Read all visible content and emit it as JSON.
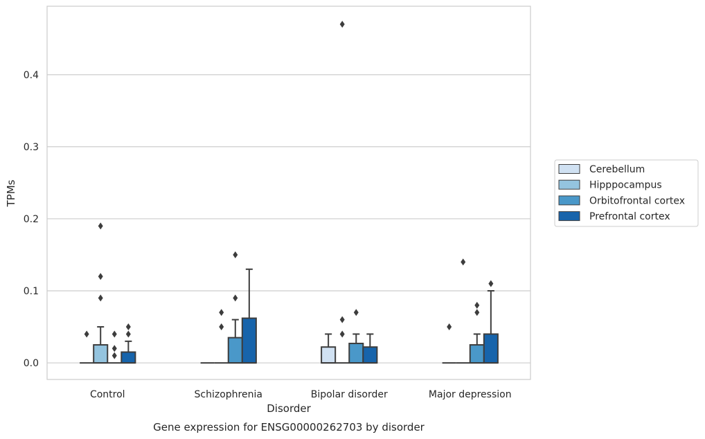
{
  "chart_data": {
    "type": "box",
    "title": "",
    "caption": "Gene expression for ENSG00000262703 by disorder",
    "xlabel": "Disorder",
    "ylabel": "TPMs",
    "ylim": [
      -0.023,
      0.495
    ],
    "yticks": [
      0.0,
      0.1,
      0.2,
      0.3,
      0.4
    ],
    "ytick_labels": [
      "0.0",
      "0.1",
      "0.2",
      "0.3",
      "0.4"
    ],
    "grid": "horizontal",
    "legend_placement": "right",
    "categories": [
      "Control",
      "Schizophrenia",
      "Bipolar disorder",
      "Major depression"
    ],
    "series": [
      {
        "name": "Cerebellum",
        "color": "#d0e1f2",
        "boxes": [
          {
            "q1": 0,
            "median": 0,
            "q3": 0,
            "whisker_low": 0,
            "whisker_high": 0,
            "outliers": [
              0.04
            ]
          },
          {
            "q1": 0,
            "median": 0,
            "q3": 0,
            "whisker_low": 0,
            "whisker_high": 0,
            "outliers": []
          },
          {
            "q1": 0,
            "median": 0,
            "q3": 0.022,
            "whisker_low": 0,
            "whisker_high": 0.04,
            "outliers": []
          },
          {
            "q1": 0,
            "median": 0,
            "q3": 0,
            "whisker_low": 0,
            "whisker_high": 0,
            "outliers": [
              0.05
            ]
          }
        ]
      },
      {
        "name": "Hipppocampus",
        "color": "#94c4df",
        "boxes": [
          {
            "q1": 0,
            "median": 0,
            "q3": 0.025,
            "whisker_low": 0,
            "whisker_high": 0.05,
            "outliers": [
              0.09,
              0.12,
              0.19
            ]
          },
          {
            "q1": 0,
            "median": 0,
            "q3": 0,
            "whisker_low": 0,
            "whisker_high": 0,
            "outliers": [
              0.05,
              0.07
            ]
          },
          {
            "q1": 0,
            "median": 0,
            "q3": 0,
            "whisker_low": 0,
            "whisker_high": 0,
            "outliers": [
              0.04,
              0.06,
              0.47
            ]
          },
          {
            "q1": 0,
            "median": 0,
            "q3": 0,
            "whisker_low": 0,
            "whisker_high": 0,
            "outliers": [
              0.14
            ]
          }
        ]
      },
      {
        "name": "Orbitofrontal cortex",
        "color": "#4a98c9",
        "boxes": [
          {
            "q1": 0,
            "median": 0,
            "q3": 0,
            "whisker_low": 0,
            "whisker_high": 0,
            "outliers": [
              0.01,
              0.02,
              0.04
            ]
          },
          {
            "q1": 0,
            "median": 0,
            "q3": 0.035,
            "whisker_low": 0,
            "whisker_high": 0.06,
            "outliers": [
              0.09,
              0.15
            ]
          },
          {
            "q1": 0,
            "median": 0,
            "q3": 0.027,
            "whisker_low": 0,
            "whisker_high": 0.04,
            "outliers": [
              0.07
            ]
          },
          {
            "q1": 0,
            "median": 0,
            "q3": 0.025,
            "whisker_low": 0,
            "whisker_high": 0.04,
            "outliers": [
              0.07,
              0.08
            ]
          }
        ]
      },
      {
        "name": "Prefrontal cortex",
        "color": "#1764ab",
        "boxes": [
          {
            "q1": 0,
            "median": 0,
            "q3": 0.015,
            "whisker_low": 0,
            "whisker_high": 0.03,
            "outliers": [
              0.04,
              0.05
            ]
          },
          {
            "q1": 0,
            "median": 0,
            "q3": 0.062,
            "whisker_low": 0,
            "whisker_high": 0.13,
            "outliers": []
          },
          {
            "q1": 0,
            "median": 0,
            "q3": 0.022,
            "whisker_low": 0,
            "whisker_high": 0.04,
            "outliers": []
          },
          {
            "q1": 0,
            "median": 0,
            "q3": 0.04,
            "whisker_low": 0,
            "whisker_high": 0.1,
            "outliers": [
              0.11
            ]
          }
        ]
      }
    ]
  }
}
